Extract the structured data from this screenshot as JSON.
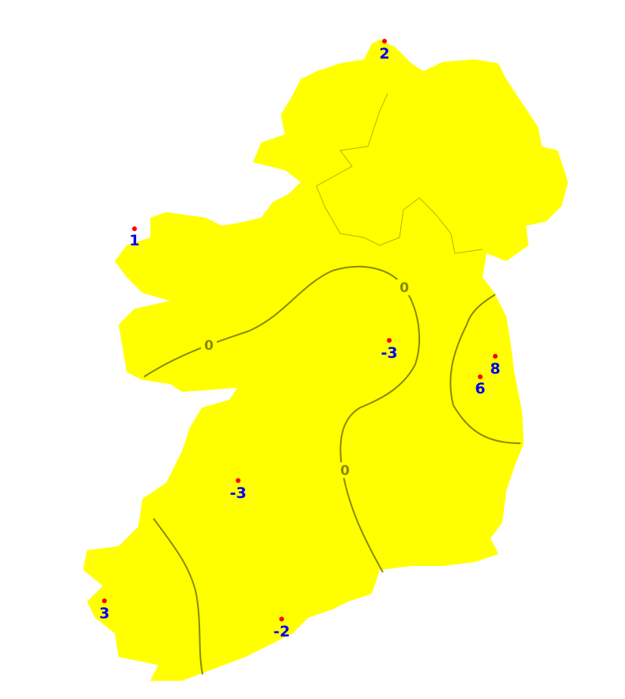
{
  "colors": {
    "land": "#ffff00",
    "contour": "#8a8a00",
    "station_dot": "#ff0000",
    "station_label": "#0000ee",
    "border": "#b5b500"
  },
  "stations": [
    {
      "value": "2"
    },
    {
      "value": "1"
    },
    {
      "value": "-3"
    },
    {
      "value": "8"
    },
    {
      "value": "6"
    },
    {
      "value": "-3"
    },
    {
      "value": "3"
    },
    {
      "value": "-2"
    }
  ],
  "contour_labels": [
    {
      "value": "0"
    },
    {
      "value": "0"
    },
    {
      "value": "0"
    }
  ]
}
